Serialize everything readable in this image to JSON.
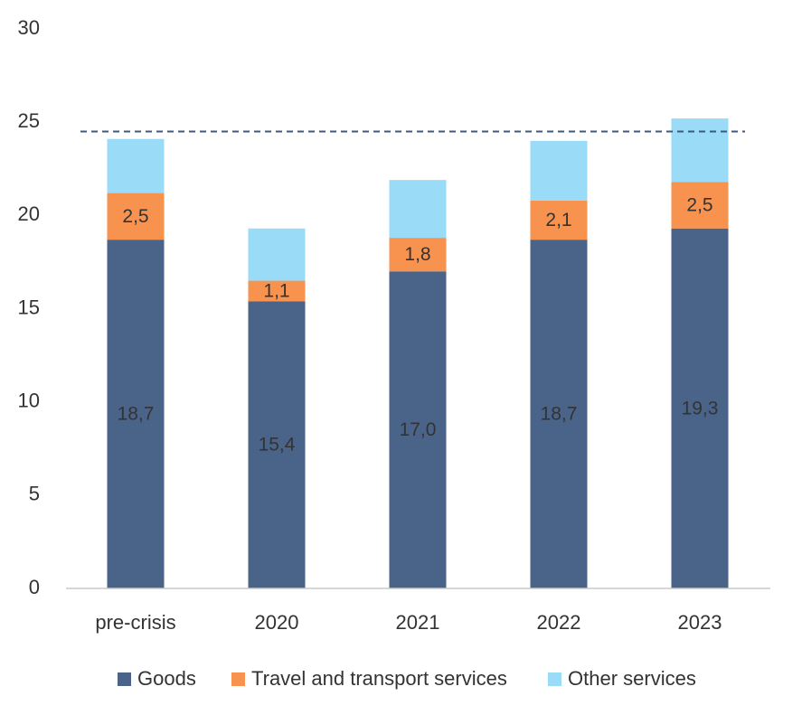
{
  "chart_data": {
    "type": "bar",
    "stacked": true,
    "categories": [
      "pre-crisis",
      "2020",
      "2021",
      "2022",
      "2023"
    ],
    "series": [
      {
        "name": "Goods",
        "values": [
          18.7,
          15.4,
          17.0,
          18.7,
          19.3
        ],
        "color": "#4a6388",
        "labels": [
          "18,7",
          "15,4",
          "17,0",
          "18,7",
          "19,3"
        ]
      },
      {
        "name": "Travel and transport services",
        "values": [
          2.5,
          1.1,
          1.8,
          2.1,
          2.5
        ],
        "color": "#f7924f",
        "labels": [
          "2,5",
          "1,1",
          "1,8",
          "2,1",
          "2,5"
        ]
      },
      {
        "name": "Other services",
        "values": [
          2.9,
          2.8,
          3.1,
          3.2,
          3.4
        ],
        "color": "#9adcf7"
      }
    ],
    "reference_line": {
      "value": 24.5,
      "style": "dashed",
      "color": "#3b5a80"
    },
    "ylim": [
      0,
      30
    ],
    "yticks": [
      "0",
      "5",
      "10",
      "15",
      "20",
      "25",
      "30"
    ],
    "ytick_values": [
      0,
      5,
      10,
      15,
      20,
      25,
      30
    ],
    "legend_position": "bottom",
    "grid": false
  }
}
